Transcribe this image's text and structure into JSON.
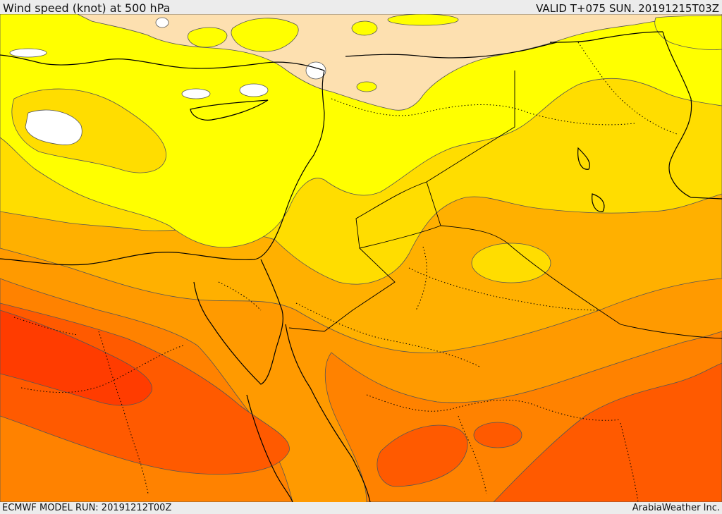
{
  "header": {
    "title": "Wind speed (knot) at 500 hPa",
    "valid": "VALID T+075 SUN. 20191215T03Z"
  },
  "footer": {
    "model_run": "ECMWF MODEL RUN: 20191212T00Z",
    "credit": "ArabiaWeather Inc."
  },
  "colors": {
    "lowest": "#ffffff",
    "band1": "#fde0b0",
    "band2": "#ffff00",
    "band3": "#ffdd00",
    "band4": "#ffb000",
    "band5": "#ff8200",
    "band6": "#ff5a00",
    "band7": "#ff3c00",
    "coast": "#000000",
    "contour": "#555555"
  }
}
